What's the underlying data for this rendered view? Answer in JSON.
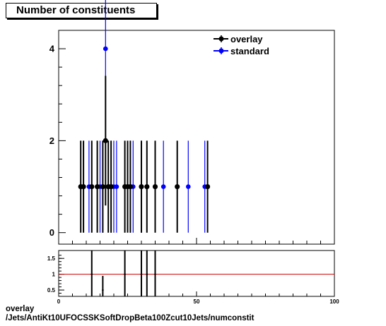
{
  "title": "Number of constituents",
  "footer": {
    "line1": "overlay",
    "line2": "/Jets/AntiKt10UFOCSSKSoftDropBeta100Zcut10Jets/numconstit"
  },
  "colors": {
    "overlay": "#000000",
    "standard": "#0000ff",
    "ratio_line": "#cc0000"
  },
  "chart_data": [
    {
      "type": "scatter",
      "title": "Number of constituents",
      "xlim": [
        0,
        100
      ],
      "ylim": [
        -0.25,
        4.4
      ],
      "y_ticks": [
        "0",
        "2",
        "4"
      ],
      "legend_position": "top-right",
      "series": [
        {
          "name": "overlay",
          "x": [
            8,
            9,
            12,
            14,
            16,
            17,
            18,
            19,
            24,
            25,
            26,
            30,
            32,
            35,
            43,
            54
          ],
          "y": [
            1,
            1,
            1,
            1,
            1,
            2,
            1,
            1,
            1,
            1,
            1,
            1,
            1,
            1,
            1,
            1
          ],
          "err": [
            1,
            1,
            1,
            1,
            1,
            1.41,
            1,
            1,
            1,
            1,
            1,
            1,
            1,
            1,
            1,
            1
          ]
        },
        {
          "name": "standard",
          "x": [
            11,
            15,
            16,
            17,
            19,
            20,
            21,
            26,
            27,
            30,
            38,
            47,
            53
          ],
          "y": [
            1,
            1,
            1,
            4,
            1,
            1,
            1,
            1,
            1,
            1,
            1,
            1,
            1
          ],
          "err": [
            1,
            1,
            1,
            2,
            1,
            1,
            1,
            1,
            1,
            1,
            1,
            1,
            1
          ]
        }
      ]
    },
    {
      "type": "scatter",
      "name": "ratio",
      "x_ticks": [
        "0",
        "50",
        "100"
      ],
      "y_ticks": [
        "0.5",
        "1",
        "1.5"
      ],
      "xlim": [
        0,
        100
      ],
      "ylim": [
        0.3,
        1.75
      ],
      "reference_line": 1,
      "points": [
        {
          "x": 12,
          "y": 1.0,
          "err": 1.41
        },
        {
          "x": 16,
          "y": 0.5,
          "err": 0.45
        },
        {
          "x": 24,
          "y": 1.0,
          "err": 1.41
        },
        {
          "x": 30,
          "y": 1.0,
          "err": 1.41
        },
        {
          "x": 32,
          "y": 1.0,
          "err": 1.41
        },
        {
          "x": 35,
          "y": 1.0,
          "err": 1.41
        }
      ]
    }
  ]
}
